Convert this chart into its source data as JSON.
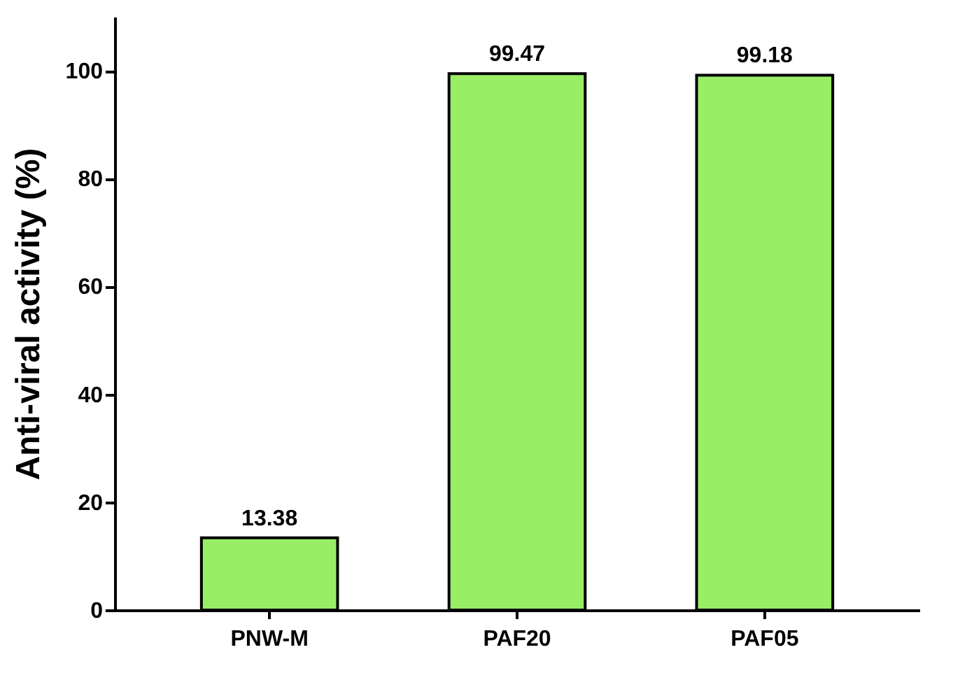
{
  "chart_data": {
    "type": "bar",
    "ylabel": "Anti-viral activity (%)",
    "categories": [
      "PNW-M",
      "PAF20",
      "PAF05"
    ],
    "series": [
      {
        "color": "#99ee66",
        "values": [
          13.38,
          99.47,
          99.18
        ]
      }
    ],
    "ylim": [
      0,
      110
    ],
    "yticks": [
      0,
      20,
      40,
      60,
      80,
      100
    ],
    "data_labels": true,
    "grid": false
  }
}
